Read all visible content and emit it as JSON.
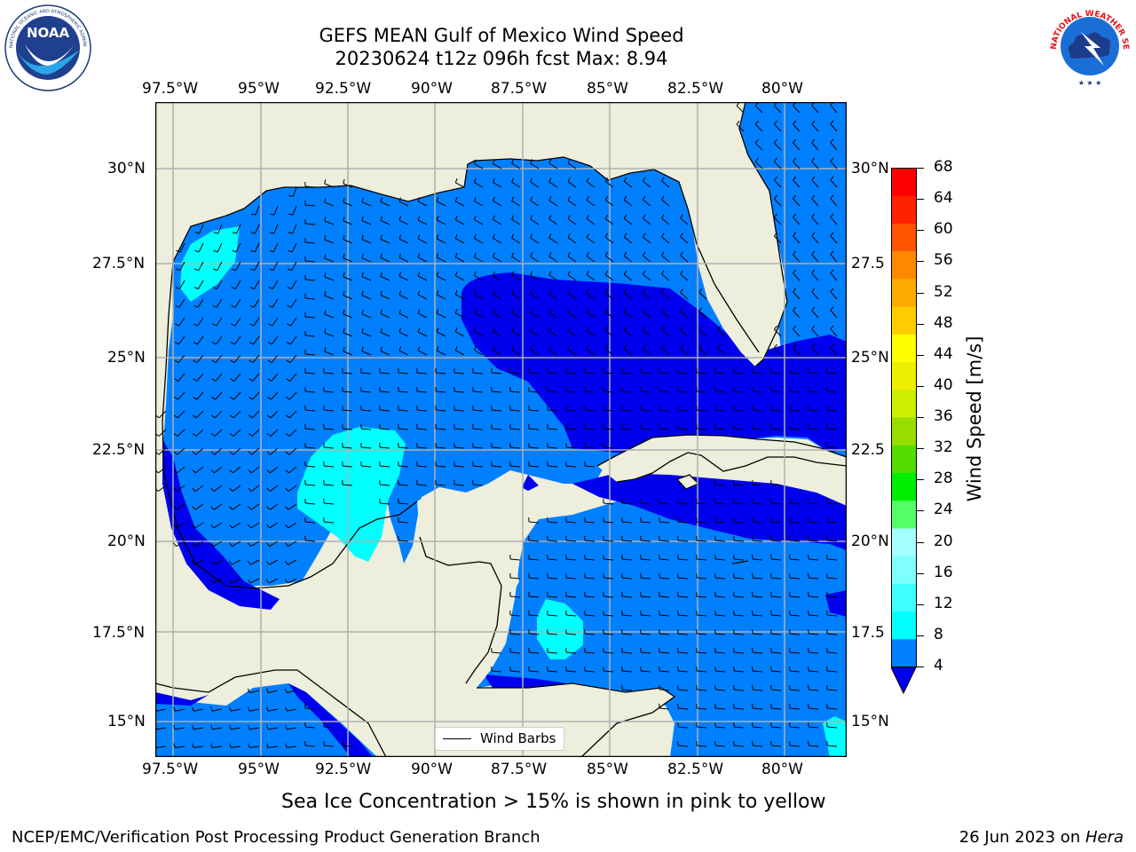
{
  "title": {
    "line1": "GEFS MEAN Gulf of Mexico Wind Speed",
    "line2": "20230624 t12z 096h fcst   Max: 8.94"
  },
  "axes": {
    "longitude_ticks": [
      "97.5°W",
      "95°W",
      "92.5°W",
      "90°W",
      "87.5°W",
      "85°W",
      "82.5°W",
      "80°W"
    ],
    "latitude_ticks": [
      "30°N",
      "27.5°N",
      "25°N",
      "22.5°N",
      "20°N",
      "17.5°N",
      "15°N"
    ],
    "latitude_ticks_right": [
      "30°N",
      "27.5",
      "25°N",
      "22.5",
      "20°N",
      "17.5",
      "15°N"
    ]
  },
  "colorbar": {
    "label": "Wind Speed [m/s]",
    "ticks": [
      "4",
      "8",
      "12",
      "16",
      "20",
      "24",
      "28",
      "32",
      "36",
      "40",
      "44",
      "48",
      "52",
      "56",
      "60",
      "64",
      "68"
    ],
    "under_color": "#0000ee",
    "colors": [
      "#0080ff",
      "#00ffff",
      "#40ffff",
      "#80ffff",
      "#a6ffff",
      "#55ff66",
      "#00ee00",
      "#55dd00",
      "#99dd00",
      "#ccee00",
      "#eeee00",
      "#ffff00",
      "#ffcc00",
      "#ffaa00",
      "#ff8800",
      "#ff5500",
      "#ff2200",
      "#ff0000"
    ]
  },
  "map_colors": {
    "land": "#eeeedd",
    "ocean_4_8": "#0080ff",
    "ocean_lt_4": "#0000ee",
    "ocean_8_12": "#00ffff"
  },
  "legend": {
    "label": "Wind Barbs"
  },
  "caption": "Sea Ice Concentration > 15% is shown in pink to yellow",
  "footer": {
    "left": "NCEP/EMC/Verification Post Processing Product Generation Branch",
    "right_date": "26 Jun 2023 on ",
    "right_machine": "Hera"
  },
  "logos": {
    "left": "NOAA",
    "left_ring": "NATIONAL OCEANIC AND ATMOSPHERIC ADMINISTRATION · U.S. DEPARTMENT OF COMMERCE",
    "right": "NATIONAL WEATHER SERVICE"
  }
}
